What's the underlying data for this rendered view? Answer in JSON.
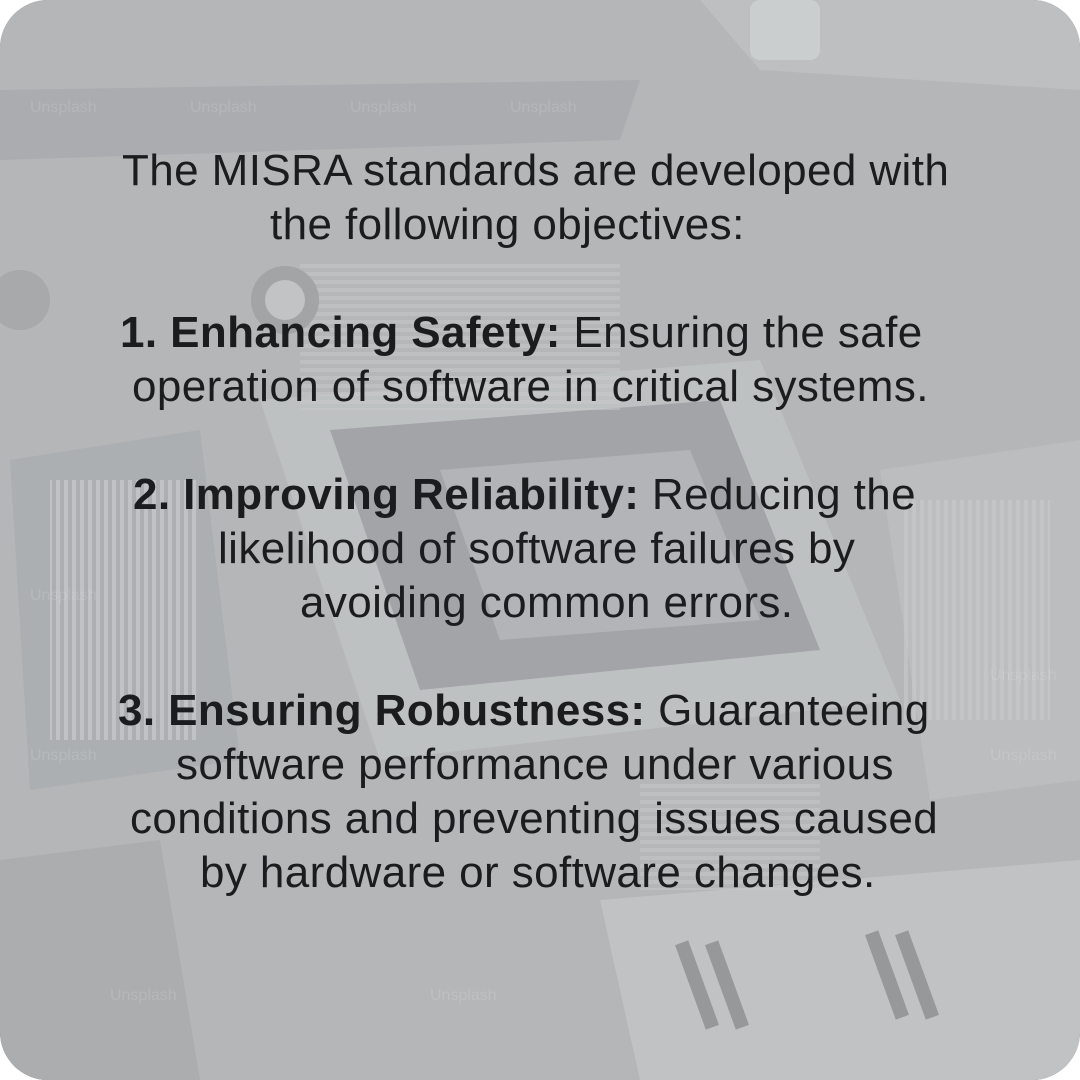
{
  "intro": {
    "line1": "The MISRA standards are developed with",
    "line2": "the following objectives:"
  },
  "objectives": [
    {
      "title": "1. Enhancing Safety:",
      "lines": [
        " Ensuring the safe",
        "operation of software in critical systems."
      ]
    },
    {
      "title": "2. Improving Reliability:",
      "lines": [
        " Reducing the",
        "likelihood of software failures by",
        "avoiding common errors."
      ]
    },
    {
      "title": "3. Ensuring Robustness:",
      "lines": [
        " Guaranteeing",
        "software performance under various",
        "conditions and preventing issues caused",
        "by hardware or software changes."
      ]
    }
  ],
  "watermark": "Unsplash",
  "colors": {
    "background": "#9a9d9f",
    "text": "#1b1c1e"
  }
}
